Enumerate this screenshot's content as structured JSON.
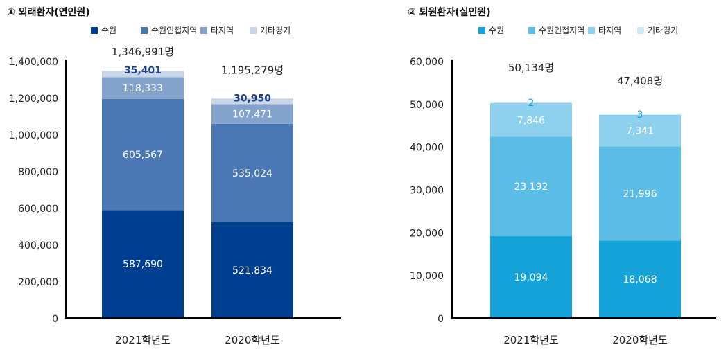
{
  "chart_data": [
    {
      "type": "bar",
      "stacked": true,
      "title": "① 외래환자(연인원)",
      "categories": [
        "2021학년도",
        "2020학년도"
      ],
      "series": [
        {
          "name": "수원",
          "values": [
            587690,
            521834
          ],
          "labels": [
            "587,690",
            "521,834"
          ],
          "color": "#003f8f"
        },
        {
          "name": "수원인접지역",
          "values": [
            605567,
            535024
          ],
          "labels": [
            "605,567",
            "535,024"
          ],
          "color": "#4b78b4"
        },
        {
          "name": "타지역",
          "values": [
            118333,
            107471
          ],
          "labels": [
            "118,333",
            "107,471"
          ],
          "color": "#83a3cd"
        },
        {
          "name": "기타경기",
          "values": [
            35401,
            30950
          ],
          "labels": [
            "35,401",
            "30,950"
          ],
          "color": "#c9d6e8"
        }
      ],
      "totals": [
        "1,346,991명",
        "1,195,279명"
      ],
      "ylim": [
        0,
        1400000
      ],
      "yticks": [
        0,
        200000,
        400000,
        600000,
        800000,
        1000000,
        1200000,
        1400000
      ],
      "ytick_labels": [
        "0",
        "200,000",
        "400,000",
        "600,000",
        "800,000",
        "1,000,000",
        "1,200,000",
        "1,400,000"
      ],
      "legend": "top",
      "grid": false,
      "top_label_color": "#1b3d8a"
    },
    {
      "type": "bar",
      "stacked": true,
      "title": "② 퇴원환자(실인원)",
      "categories": [
        "2021학년도",
        "2020학년도"
      ],
      "series": [
        {
          "name": "수원",
          "values": [
            19094,
            18068
          ],
          "labels": [
            "19,094",
            "18,068"
          ],
          "color": "#15a3d9"
        },
        {
          "name": "수원인접지역",
          "values": [
            23192,
            21996
          ],
          "labels": [
            "23,192",
            "21,996"
          ],
          "color": "#5bbde6"
        },
        {
          "name": "타지역",
          "values": [
            7846,
            7341
          ],
          "labels": [
            "7,846",
            "7,341"
          ],
          "color": "#8ed1ee"
        },
        {
          "name": "기타경기",
          "values": [
            2,
            3
          ],
          "labels": [
            "2",
            "3"
          ],
          "color": "#cfeaf6"
        }
      ],
      "totals": [
        "50,134명",
        "47,408명"
      ],
      "ylim": [
        0,
        60000
      ],
      "yticks": [
        0,
        10000,
        20000,
        30000,
        40000,
        50000,
        60000
      ],
      "ytick_labels": [
        "0",
        "10,000",
        "20,000",
        "30,000",
        "40,000",
        "50,000",
        "60,000"
      ],
      "legend": "top",
      "grid": false,
      "top_label_color": "#1a9ad6"
    }
  ]
}
